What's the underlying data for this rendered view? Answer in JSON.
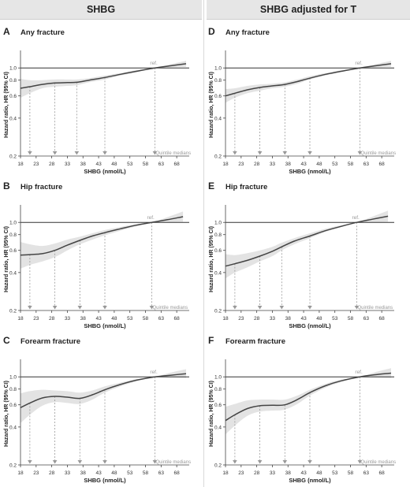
{
  "headers": {
    "left": "SHBG",
    "right": "SHBG adjusted for T"
  },
  "chart_data": [
    {
      "type": "line",
      "panel": "A",
      "title": "Any fracture",
      "xlabel": "SHBG (nmol/L)",
      "ylabel": "Hazard ratio, HR (95% CI)",
      "xlim": [
        18,
        72
      ],
      "ylim": [
        0.2,
        1.3
      ],
      "yscale": "log",
      "xticks": [
        "18",
        "23",
        "28",
        "33",
        "38",
        "43",
        "48",
        "53",
        "58",
        "63",
        "68"
      ],
      "yticks": [
        "0.2",
        "0.4",
        "0.6",
        "0.8",
        "1.0"
      ],
      "reference_label": "ref.",
      "reference_x": 61,
      "reference_line_y": 1.0,
      "quintile_label": "Quintile medians",
      "quintile_medians": [
        21,
        29,
        36,
        45,
        61
      ],
      "series": [
        {
          "x": [
            18,
            21,
            25,
            29,
            33,
            36,
            40,
            45,
            50,
            55,
            61,
            66,
            71
          ],
          "y": [
            0.69,
            0.71,
            0.74,
            0.76,
            0.765,
            0.77,
            0.8,
            0.84,
            0.89,
            0.94,
            1.0,
            1.04,
            1.08
          ]
        }
      ],
      "ci_lower": [
        0.58,
        0.63,
        0.69,
        0.71,
        0.72,
        0.73,
        0.77,
        0.81,
        0.87,
        0.92,
        1.0,
        1.01,
        1.02
      ],
      "ci_upper": [
        0.82,
        0.8,
        0.8,
        0.81,
        0.81,
        0.81,
        0.83,
        0.87,
        0.91,
        0.96,
        1.0,
        1.07,
        1.14
      ]
    },
    {
      "type": "line",
      "panel": "B",
      "title": "Hip fracture",
      "xlabel": "SHBG (nmol/L)",
      "ylabel": "Hazard ratio, HR (95% CI)",
      "xlim": [
        18,
        72
      ],
      "ylim": [
        0.2,
        1.3
      ],
      "yscale": "log",
      "xticks": [
        "18",
        "23",
        "28",
        "33",
        "38",
        "43",
        "48",
        "53",
        "58",
        "63",
        "68"
      ],
      "yticks": [
        "0.2",
        "0.4",
        "0.6",
        "0.8",
        "1.0"
      ],
      "reference_label": "ref.",
      "reference_x": 60,
      "reference_line_y": 1.0,
      "quintile_label": "Quintile medians",
      "quintile_medians": [
        21,
        29,
        37,
        45,
        60
      ],
      "series": [
        {
          "x": [
            18,
            21,
            25,
            29,
            33,
            37,
            41,
            45,
            50,
            55,
            60,
            65,
            70
          ],
          "y": [
            0.55,
            0.555,
            0.565,
            0.6,
            0.66,
            0.72,
            0.78,
            0.83,
            0.89,
            0.95,
            1.0,
            1.05,
            1.11
          ]
        }
      ],
      "ci_lower": [
        0.43,
        0.46,
        0.49,
        0.53,
        0.6,
        0.67,
        0.73,
        0.79,
        0.86,
        0.93,
        1.0,
        1.0,
        1.01
      ],
      "ci_upper": [
        0.7,
        0.67,
        0.65,
        0.68,
        0.73,
        0.77,
        0.82,
        0.87,
        0.92,
        0.97,
        1.0,
        1.1,
        1.22
      ]
    },
    {
      "type": "line",
      "panel": "C",
      "title": "Forearm fracture",
      "xlabel": "SHBG (nmol/L)",
      "ylabel": "Hazard ratio, HR (95% CI)",
      "xlim": [
        18,
        72
      ],
      "ylim": [
        0.2,
        1.3
      ],
      "yscale": "log",
      "xticks": [
        "18",
        "23",
        "28",
        "33",
        "38",
        "43",
        "48",
        "53",
        "58",
        "63",
        "68"
      ],
      "yticks": [
        "0.2",
        "0.4",
        "0.6",
        "0.8",
        "1.0"
      ],
      "reference_label": "ref.",
      "reference_x": 61,
      "reference_line_y": 1.0,
      "quintile_label": "Quintile medians",
      "quintile_medians": [
        21,
        29,
        37,
        45,
        61
      ],
      "series": [
        {
          "x": [
            18,
            21,
            25,
            29,
            33,
            37,
            41,
            45,
            50,
            55,
            61,
            66,
            71
          ],
          "y": [
            0.57,
            0.62,
            0.68,
            0.7,
            0.69,
            0.675,
            0.72,
            0.79,
            0.87,
            0.94,
            1.0,
            1.03,
            1.06
          ]
        }
      ],
      "ci_lower": [
        0.43,
        0.5,
        0.59,
        0.63,
        0.62,
        0.61,
        0.66,
        0.75,
        0.84,
        0.92,
        1.0,
        0.99,
        0.98
      ],
      "ci_upper": [
        0.74,
        0.77,
        0.79,
        0.78,
        0.77,
        0.75,
        0.78,
        0.84,
        0.9,
        0.96,
        1.0,
        1.08,
        1.15
      ]
    },
    {
      "type": "line",
      "panel": "D",
      "title": "Any fracture",
      "xlabel": "SHBG (nmol/L)",
      "ylabel": "Hazard ratio, HR (95% CI)",
      "xlim": [
        18,
        72
      ],
      "ylim": [
        0.2,
        1.3
      ],
      "yscale": "log",
      "xticks": [
        "18",
        "23",
        "28",
        "33",
        "38",
        "43",
        "48",
        "53",
        "58",
        "63",
        "68"
      ],
      "yticks": [
        "0.2",
        "0.4",
        "0.6",
        "0.8",
        "1.0"
      ],
      "reference_label": "ref.",
      "reference_x": 61,
      "reference_line_y": 1.0,
      "quintile_label": "Quintile medians",
      "quintile_medians": [
        21,
        29,
        37,
        45,
        61
      ],
      "series": [
        {
          "x": [
            18,
            21,
            25,
            29,
            33,
            37,
            41,
            45,
            50,
            55,
            61,
            66,
            71
          ],
          "y": [
            0.6,
            0.63,
            0.67,
            0.7,
            0.72,
            0.74,
            0.78,
            0.83,
            0.89,
            0.94,
            1.0,
            1.04,
            1.08
          ]
        }
      ],
      "ci_lower": [
        0.53,
        0.58,
        0.63,
        0.66,
        0.69,
        0.71,
        0.75,
        0.81,
        0.87,
        0.93,
        1.0,
        1.01,
        1.02
      ],
      "ci_upper": [
        0.68,
        0.69,
        0.72,
        0.74,
        0.75,
        0.77,
        0.81,
        0.86,
        0.91,
        0.96,
        1.0,
        1.07,
        1.14
      ]
    },
    {
      "type": "line",
      "panel": "E",
      "title": "Hip fracture",
      "xlabel": "SHBG (nmol/L)",
      "ylabel": "Hazard ratio, HR (95% CI)",
      "xlim": [
        18,
        72
      ],
      "ylim": [
        0.2,
        1.3
      ],
      "yscale": "log",
      "xticks": [
        "18",
        "23",
        "28",
        "33",
        "38",
        "43",
        "48",
        "53",
        "58",
        "63",
        "68"
      ],
      "yticks": [
        "0.2",
        "0.4",
        "0.6",
        "0.8",
        "1.0"
      ],
      "reference_label": "ref.",
      "reference_x": 60,
      "reference_line_y": 1.0,
      "quintile_label": "Quintile medians",
      "quintile_medians": [
        21,
        29,
        36,
        45,
        60
      ],
      "series": [
        {
          "x": [
            18,
            21,
            25,
            29,
            33,
            36,
            40,
            45,
            50,
            55,
            60,
            65,
            70
          ],
          "y": [
            0.45,
            0.47,
            0.5,
            0.54,
            0.59,
            0.64,
            0.71,
            0.78,
            0.86,
            0.93,
            1.0,
            1.06,
            1.12
          ]
        }
      ],
      "ci_lower": [
        0.36,
        0.4,
        0.44,
        0.49,
        0.54,
        0.6,
        0.67,
        0.75,
        0.84,
        0.92,
        1.0,
        1.0,
        1.01
      ],
      "ci_upper": [
        0.56,
        0.55,
        0.57,
        0.6,
        0.64,
        0.69,
        0.75,
        0.82,
        0.89,
        0.95,
        1.0,
        1.11,
        1.24
      ]
    },
    {
      "type": "line",
      "panel": "F",
      "title": "Forearm fracture",
      "xlabel": "SHBG (nmol/L)",
      "ylabel": "Hazard ratio, HR (95% CI)",
      "xlim": [
        18,
        72
      ],
      "ylim": [
        0.2,
        1.3
      ],
      "yscale": "log",
      "xticks": [
        "18",
        "23",
        "28",
        "33",
        "38",
        "43",
        "48",
        "53",
        "58",
        "63",
        "68"
      ],
      "yticks": [
        "0.2",
        "0.4",
        "0.6",
        "0.8",
        "1.0"
      ],
      "reference_label": "ref.",
      "reference_x": 61,
      "reference_line_y": 1.0,
      "quintile_label": "Quintile medians",
      "quintile_medians": [
        21,
        29,
        37,
        45,
        61
      ],
      "series": [
        {
          "x": [
            18,
            21,
            25,
            29,
            33,
            37,
            41,
            45,
            50,
            55,
            61,
            66,
            71
          ],
          "y": [
            0.45,
            0.5,
            0.56,
            0.59,
            0.595,
            0.6,
            0.66,
            0.75,
            0.85,
            0.93,
            1.0,
            1.04,
            1.07
          ]
        }
      ],
      "ci_lower": [
        0.35,
        0.41,
        0.49,
        0.53,
        0.54,
        0.55,
        0.61,
        0.71,
        0.82,
        0.91,
        1.0,
        0.99,
        0.98
      ],
      "ci_upper": [
        0.58,
        0.61,
        0.65,
        0.66,
        0.66,
        0.66,
        0.71,
        0.79,
        0.88,
        0.95,
        1.0,
        1.09,
        1.17
      ]
    }
  ]
}
